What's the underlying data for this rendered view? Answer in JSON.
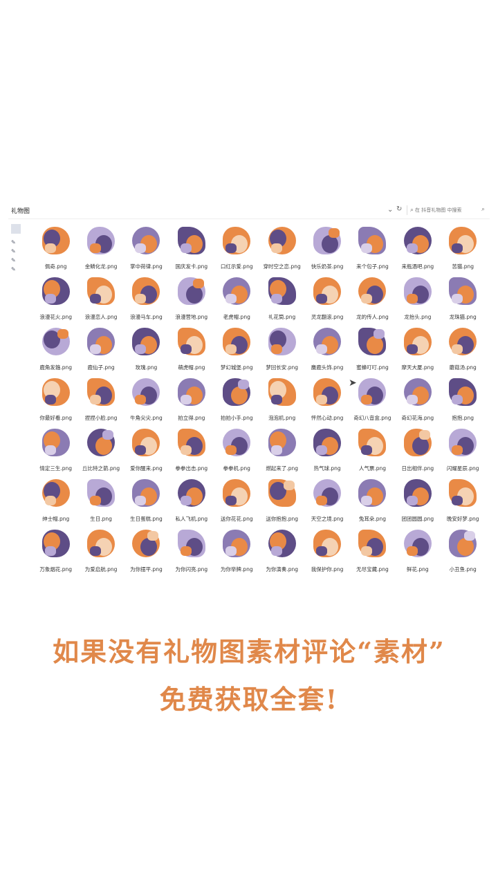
{
  "watermark": "",
  "window": {
    "folder_title": "礼物图",
    "search_placeholder": "在 抖音礼物图 中搜索"
  },
  "colors": {
    "orange": "#e98a46",
    "purple": "#5e4d86",
    "lavender": "#b8a9d6",
    "promo": "#e0884a"
  },
  "files": [
    "佩奇.png",
    "金鳞化龙.png",
    "掌中荷律.png",
    "国庆发卡.png",
    "口红示爱.png",
    "穿时空之恋.png",
    "快乐奶茶.png",
    "来个包子.png",
    "来瓶酒吧.png",
    "苦猫.png",
    "浪漫花火.png",
    "浪漫恋人.png",
    "浪漫马车.png",
    "浪漫营地.png",
    "老虎帽.png",
    "礼花筒.png",
    "灵龙翻滚.png",
    "龙的传人.png",
    "龙抬头.png",
    "龙珠猫.png",
    "鹿角发箍.png",
    "鹿仙子.png",
    "玫瑰.png",
    "萌虎帽.png",
    "梦幻城堡.png",
    "梦回长安.png",
    "麋鹿头饰.png",
    "蜜蜂叮叮.png",
    "摩天大厦.png",
    "蘑菇汤.png",
    "你最好看.png",
    "捏捏小脸.png",
    "牛角尖尖.png",
    "拍立得.png",
    "拍拍小手.png",
    "泡泡机.png",
    "怦然心动.png",
    "奇幻八音盒.png",
    "奇幻花海.png",
    "抱抱.png",
    "情定三生.png",
    "丘比特之箭.png",
    "爱你醒来.png",
    "拳拳出击.png",
    "拳拳机.png",
    "燃起来了.png",
    "热气球.png",
    "人气票.png",
    "日出相伴.png",
    "闪耀星辰.png",
    "绅士帽.png",
    "生日.png",
    "生日蛋糕.png",
    "私人飞机.png",
    "送你花花.png",
    "送你抱抱.png",
    "天空之境.png",
    "兔耳朵.png",
    "团团圆圆.png",
    "晚安好梦.png",
    "万象烟花.png",
    "为爱启航.png",
    "为你摆平.png",
    "为你闪亮.png",
    "为你举牌.png",
    "为你演奏.png",
    "我保护你.png",
    "无尽宝藏.png",
    "鲜花.png",
    "小丑鱼.png"
  ],
  "promo": {
    "line1": "如果没有礼物图素材评论“素材”",
    "line2": "免费获取全套!"
  }
}
